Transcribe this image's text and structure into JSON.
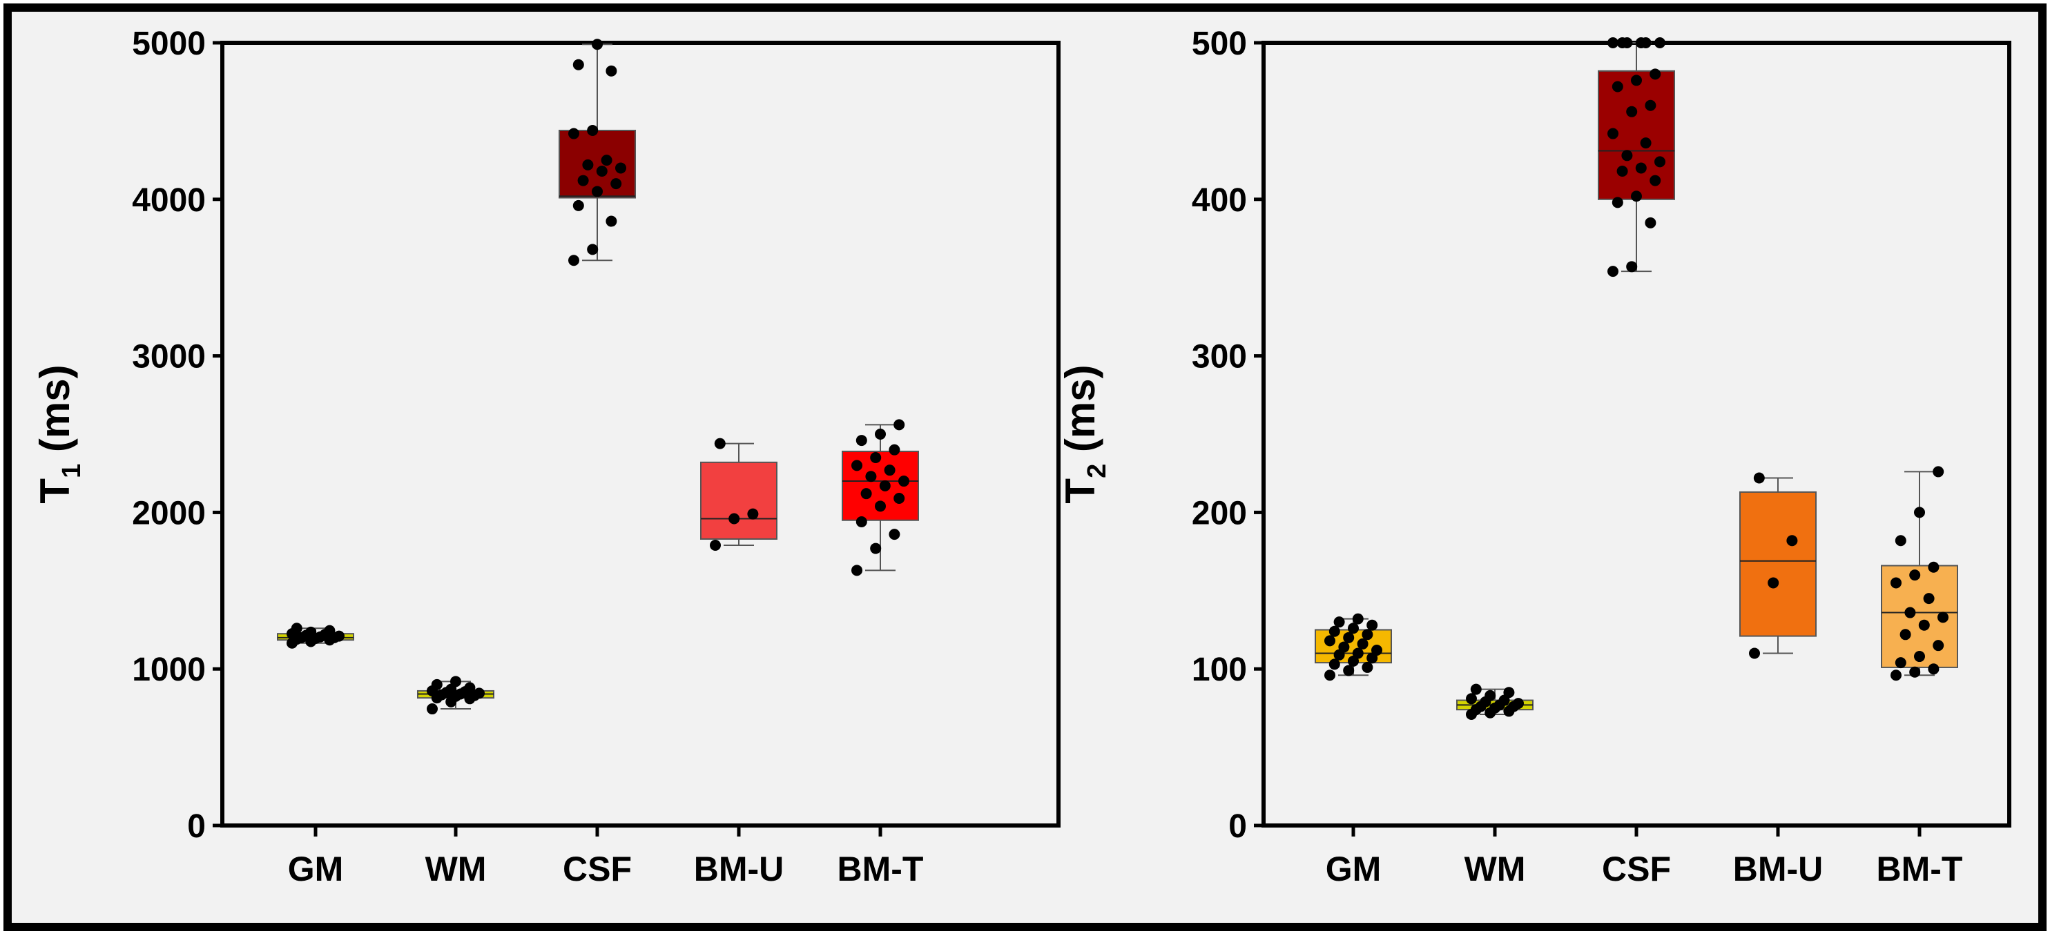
{
  "chart_data": [
    {
      "type": "box",
      "ylabel_main": "T",
      "ylabel_sub": "1",
      "ylabel_unit": "(ms)",
      "ylim": [
        0,
        5000
      ],
      "yticks": [
        0,
        1000,
        2000,
        3000,
        4000,
        5000
      ],
      "categories": [
        "GM",
        "WM",
        "CSF",
        "BM-U",
        "BM-T"
      ],
      "boxes": [
        {
          "category": "GM",
          "min": 1165,
          "q1": 1185,
          "median": 1200,
          "q3": 1225,
          "max": 1260,
          "color": "#d4d400",
          "points": [
            1165,
            1175,
            1185,
            1190,
            1195,
            1200,
            1200,
            1205,
            1210,
            1215,
            1220,
            1225,
            1235,
            1245,
            1260
          ]
        },
        {
          "category": "WM",
          "min": 745,
          "q1": 815,
          "median": 840,
          "q3": 860,
          "max": 920,
          "color": "#d4d400",
          "points": [
            745,
            790,
            810,
            815,
            825,
            830,
            835,
            840,
            845,
            850,
            855,
            860,
            870,
            880,
            900,
            920
          ]
        },
        {
          "category": "CSF",
          "min": 3610,
          "q1": 4010,
          "median": 4020,
          "q3": 4440,
          "max": 4990,
          "color": "#8b0000",
          "points": [
            3610,
            3680,
            3860,
            3960,
            4050,
            4100,
            4120,
            4180,
            4200,
            4220,
            4250,
            4420,
            4440,
            4820,
            4860,
            4990
          ]
        },
        {
          "category": "BM-U",
          "min": 1790,
          "q1": 1830,
          "median": 1960,
          "q3": 2320,
          "max": 2440,
          "color": "#f24040",
          "points": [
            1790,
            1960,
            1990,
            2440
          ]
        },
        {
          "category": "BM-T",
          "min": 1630,
          "q1": 1950,
          "median": 2200,
          "q3": 2390,
          "max": 2560,
          "color": "#ff0000",
          "points": [
            1630,
            1770,
            1860,
            1940,
            2040,
            2090,
            2120,
            2170,
            2200,
            2230,
            2270,
            2300,
            2350,
            2400,
            2460,
            2500,
            2560
          ]
        }
      ]
    },
    {
      "type": "box",
      "ylabel_main": "T",
      "ylabel_sub": "2",
      "ylabel_unit": "(ms)",
      "ylim": [
        0,
        500
      ],
      "yticks": [
        0,
        100,
        200,
        300,
        400,
        500
      ],
      "categories": [
        "GM",
        "WM",
        "CSF",
        "BM-U",
        "BM-T"
      ],
      "boxes": [
        {
          "category": "GM",
          "min": 96,
          "q1": 104,
          "median": 110,
          "q3": 125,
          "max": 132,
          "color": "#f5b800",
          "points": [
            96,
            99,
            101,
            103,
            105,
            107,
            109,
            110,
            112,
            114,
            116,
            118,
            120,
            122,
            124,
            126,
            128,
            130,
            132
          ]
        },
        {
          "category": "WM",
          "min": 71,
          "q1": 74,
          "median": 77,
          "q3": 80,
          "max": 87,
          "color": "#d4d400",
          "points": [
            71,
            72,
            73,
            74,
            75,
            76,
            76,
            77,
            78,
            79,
            80,
            81,
            83,
            85,
            87
          ]
        },
        {
          "category": "CSF",
          "min": 354,
          "q1": 400,
          "median": 431,
          "q3": 482,
          "max": 500,
          "color": "#9b0000",
          "points": [
            354,
            357,
            385,
            398,
            402,
            412,
            418,
            420,
            424,
            428,
            436,
            442,
            456,
            460,
            472,
            476,
            480,
            500,
            500,
            500,
            500,
            500,
            500
          ]
        },
        {
          "category": "BM-U",
          "min": 110,
          "q1": 121,
          "median": 169,
          "q3": 213,
          "max": 222,
          "color": "#f07010",
          "points": [
            110,
            155,
            182,
            222
          ]
        },
        {
          "category": "BM-T",
          "min": 96,
          "q1": 101,
          "median": 136,
          "q3": 166,
          "max": 226,
          "color": "#f7b050",
          "points": [
            96,
            98,
            100,
            104,
            108,
            115,
            122,
            128,
            133,
            136,
            145,
            155,
            160,
            165,
            182,
            200,
            226
          ]
        }
      ]
    }
  ]
}
